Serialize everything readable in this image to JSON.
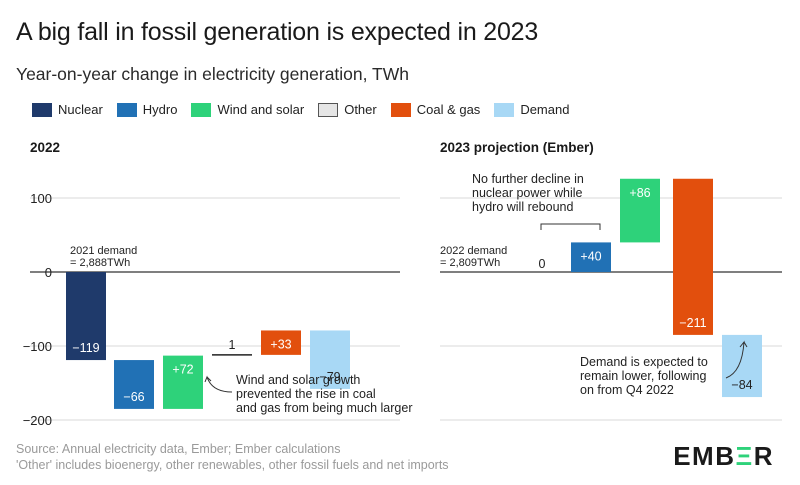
{
  "title": "A big fall in fossil generation is expected in 2023",
  "subtitle": "Year-on-year change in electricity generation, TWh",
  "legend": [
    {
      "label": "Nuclear",
      "color": "#1f3a6b"
    },
    {
      "label": "Hydro",
      "color": "#2171b5"
    },
    {
      "label": "Wind and solar",
      "color": "#2ed27a"
    },
    {
      "label": "Other",
      "color": "#e6e6e6"
    },
    {
      "label": "Coal & gas",
      "color": "#e24f0d"
    },
    {
      "label": "Demand",
      "color": "#a8d8f5"
    }
  ],
  "chart_data": [
    {
      "type": "bar",
      "variant": "waterfall",
      "title": "2022",
      "ylim": [
        -200,
        120
      ],
      "yticks": [
        "100",
        "0",
        "−100",
        "−200"
      ],
      "grid": true,
      "baseline_note": "2021 demand\n= 2,888TWh",
      "categories": [
        "Nuclear",
        "Hydro",
        "Wind and solar",
        "Other",
        "Coal & gas",
        "Demand"
      ],
      "values": [
        -119,
        -66,
        72,
        1,
        33,
        -79
      ],
      "value_labels": [
        "−119",
        "−66",
        "+72",
        "1",
        "+33",
        "−79"
      ],
      "annotation": "Wind and solar growth\nprevented the rise in coal\nand gas from being much larger"
    },
    {
      "type": "bar",
      "variant": "waterfall",
      "title": "2023 projection (Ember)",
      "ylim": [
        -200,
        120
      ],
      "grid": true,
      "baseline_note": "2022 demand\n= 2,809TWh",
      "categories": [
        "Nuclear",
        "Hydro",
        "Wind and solar",
        "Coal & gas",
        "Demand"
      ],
      "values": [
        0,
        40,
        86,
        -211,
        -84
      ],
      "value_labels": [
        "0",
        "+40",
        "+86",
        "−211",
        "−84"
      ],
      "annotation_top": "No further decline in\nnuclear power while\nhydro will rebound",
      "annotation_bottom": "Demand is expected to\nremain lower, following\non from Q4 2022"
    }
  ],
  "footer": {
    "source": "Source: Annual electricity data, Ember; Ember calculations",
    "note": "'Other' includes bioenergy, other renewables, other fossil fuels and net imports"
  },
  "logo": {
    "left": "EMB",
    "bar": "Ξ",
    "right": "R"
  }
}
